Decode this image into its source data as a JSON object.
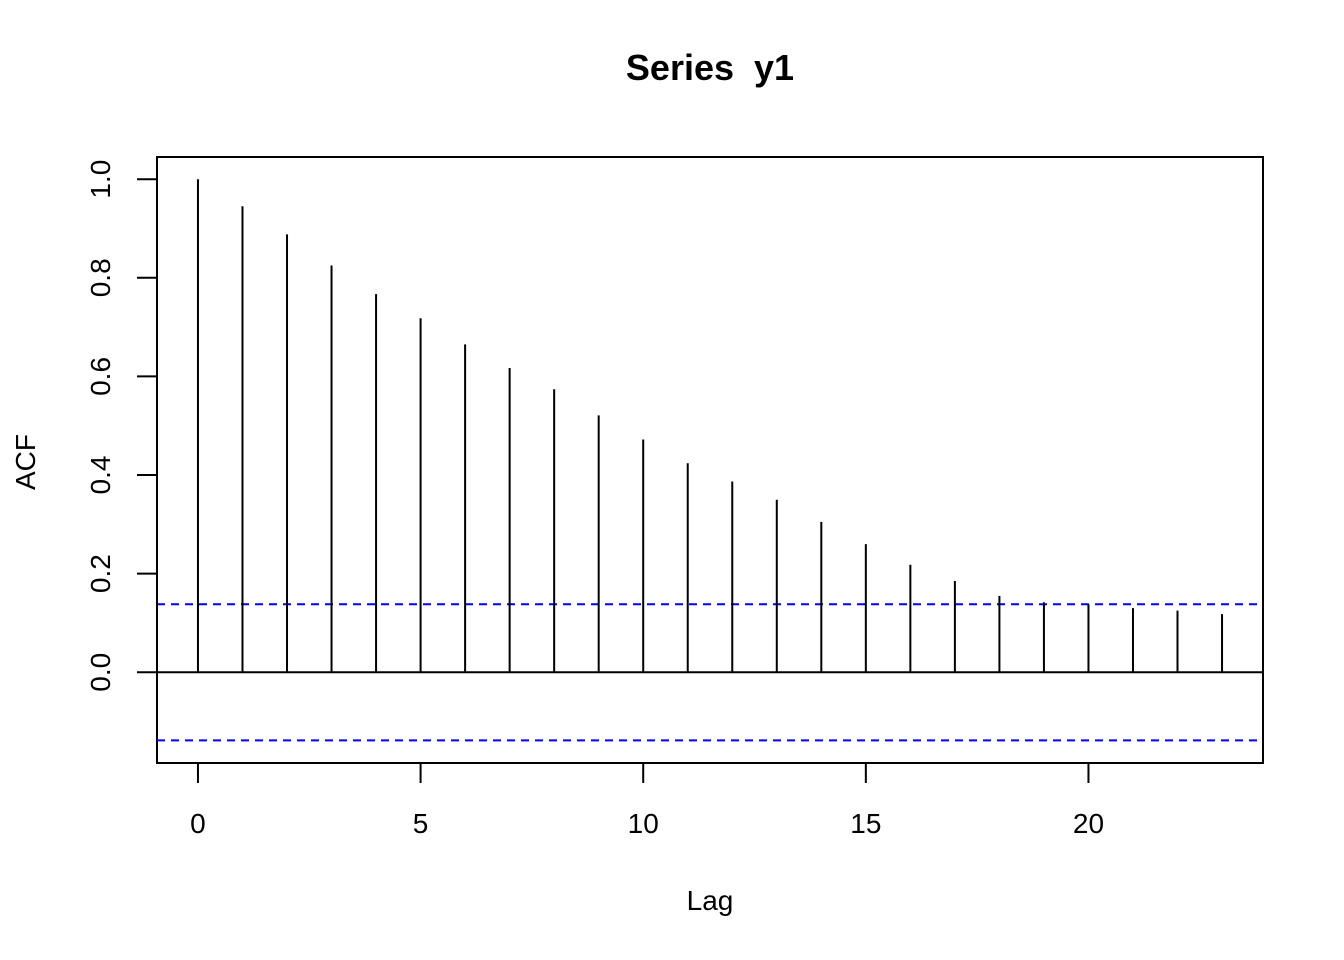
{
  "chart_data": {
    "type": "bar",
    "title": "Series  y1",
    "xlabel": "Lag",
    "ylabel": "ACF",
    "x": [
      0,
      1,
      2,
      3,
      4,
      5,
      6,
      7,
      8,
      9,
      10,
      11,
      12,
      13,
      14,
      15,
      16,
      17,
      18,
      19,
      20,
      21,
      22,
      23
    ],
    "values": [
      1.0,
      0.945,
      0.888,
      0.825,
      0.767,
      0.718,
      0.665,
      0.617,
      0.574,
      0.521,
      0.472,
      0.424,
      0.387,
      0.35,
      0.305,
      0.26,
      0.218,
      0.185,
      0.155,
      0.142,
      0.138,
      0.13,
      0.125,
      0.118
    ],
    "confidence_band": 0.138,
    "xlim": [
      -0.92,
      23.92
    ],
    "ylim": [
      -0.184,
      1.045
    ],
    "xticks": [
      0,
      5,
      10,
      15,
      20
    ],
    "yticks": [
      0.0,
      0.2,
      0.4,
      0.6,
      0.8,
      1.0
    ],
    "xtick_labels": [
      "0",
      "5",
      "10",
      "15",
      "20"
    ],
    "ytick_labels": [
      "0.0",
      "0.2",
      "0.4",
      "0.6",
      "0.8",
      "1.0"
    ],
    "grid": false,
    "colors": {
      "bars": "#000000",
      "confidence": "#0000ff",
      "axis": "#000000"
    }
  }
}
